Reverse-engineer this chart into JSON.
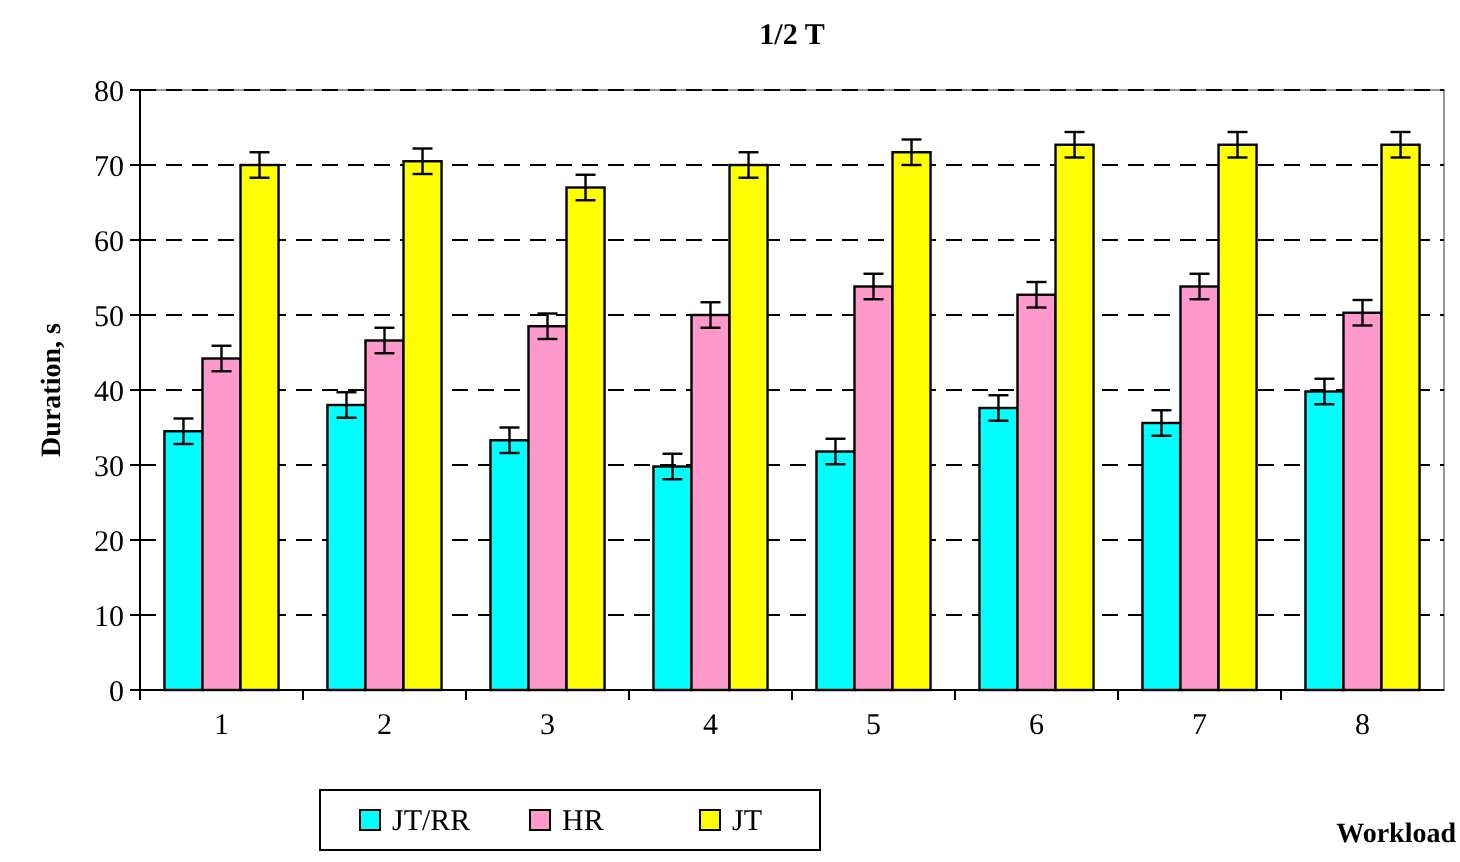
{
  "chart_data": {
    "type": "bar",
    "title": "1/2 T",
    "xlabel": "Workload",
    "ylabel": "Duration, s",
    "categories": [
      "1",
      "2",
      "3",
      "4",
      "5",
      "6",
      "7",
      "8"
    ],
    "series": [
      {
        "name": "JT/RR",
        "color": "#00ffff",
        "values": [
          34.5,
          38,
          33.3,
          29.8,
          31.8,
          37.6,
          35.6,
          39.8
        ],
        "errors": [
          1.7,
          1.7,
          1.7,
          1.7,
          1.7,
          1.7,
          1.7,
          1.7
        ]
      },
      {
        "name": "HR",
        "color": "#ff99cc",
        "values": [
          44.2,
          46.6,
          48.5,
          50,
          53.8,
          52.7,
          53.8,
          50.3
        ],
        "errors": [
          1.7,
          1.7,
          1.7,
          1.7,
          1.7,
          1.7,
          1.7,
          1.7
        ]
      },
      {
        "name": "JT",
        "color": "#ffff00",
        "values": [
          70,
          70.5,
          67,
          70,
          71.7,
          72.7,
          72.7,
          72.7
        ],
        "errors": [
          1.7,
          1.7,
          1.7,
          1.7,
          1.7,
          1.7,
          1.7,
          1.7
        ]
      }
    ],
    "ylim": [
      0,
      80
    ],
    "yticks": [
      0,
      10,
      20,
      30,
      40,
      50,
      60,
      70,
      80
    ],
    "grid": "y",
    "legend": "bottom left"
  }
}
